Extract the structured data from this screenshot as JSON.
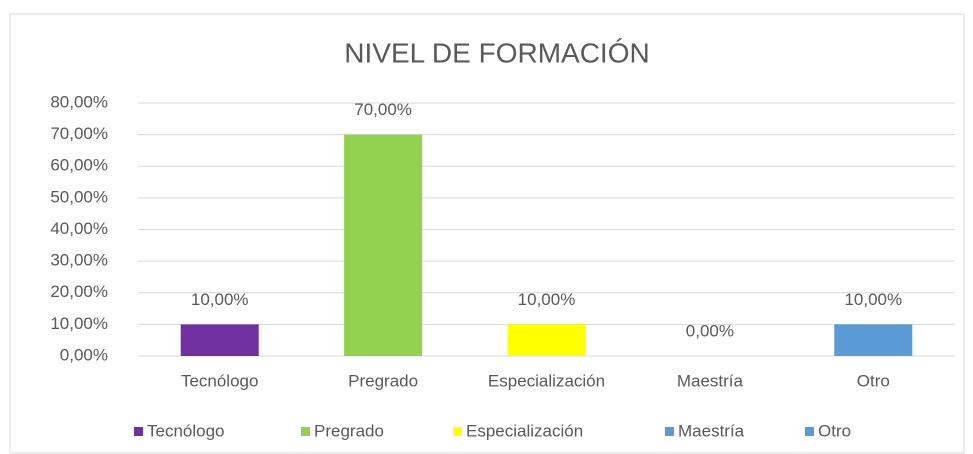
{
  "chart_data": {
    "type": "bar",
    "title": "NIVEL DE FORMACIÓN",
    "categories": [
      "Tecnólogo",
      "Pregrado",
      "Especialización",
      "Maestría",
      "Otro"
    ],
    "values": [
      10,
      70,
      10,
      0,
      10
    ],
    "value_labels": [
      "10,00%",
      "70,00%",
      "10,00%",
      "0,00%",
      "10,00%"
    ],
    "colors": [
      "#7030a0",
      "#92d050",
      "#ffff00",
      "#5b9bd5",
      "#5b9bd5"
    ],
    "ylim": [
      0,
      80
    ],
    "yticks": [
      {
        "value": 0,
        "label": "0,00%"
      },
      {
        "value": 10,
        "label": "10,00%"
      },
      {
        "value": 20,
        "label": "20,00%"
      },
      {
        "value": 30,
        "label": "30,00%"
      },
      {
        "value": 40,
        "label": "40,00%"
      },
      {
        "value": 50,
        "label": "50,00%"
      },
      {
        "value": 60,
        "label": "60,00%"
      },
      {
        "value": 70,
        "label": "70,00%"
      },
      {
        "value": 80,
        "label": "80,00%"
      }
    ],
    "grid": true,
    "legend": "bottom"
  }
}
